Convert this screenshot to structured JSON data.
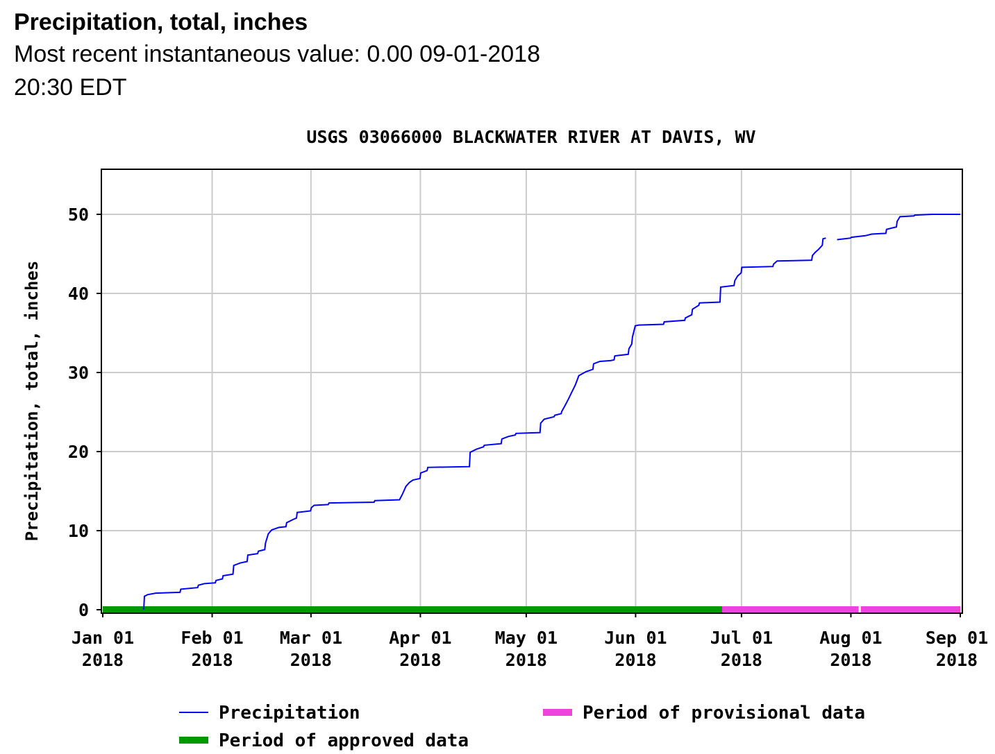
{
  "header": {
    "title": "Precipitation, total, inches",
    "recent_label": "Most recent instantaneous value:",
    "recent_value": "0.00",
    "recent_datetime": "09-01-2018",
    "recent_time": "20:30 EDT"
  },
  "chart_data": {
    "type": "line",
    "title": "USGS 03066000 BLACKWATER RIVER AT DAVIS, WV",
    "xlabel": "",
    "ylabel": "Precipitation, total, inches",
    "ylim": [
      0,
      55
    ],
    "xlim_days": [
      0,
      243
    ],
    "y_ticks": [
      0,
      10,
      20,
      30,
      40,
      50
    ],
    "x_ticks": [
      {
        "day": 0,
        "line1": "Jan 01",
        "line2": "2018"
      },
      {
        "day": 31,
        "line1": "Feb 01",
        "line2": "2018"
      },
      {
        "day": 59,
        "line1": "Mar 01",
        "line2": "2018"
      },
      {
        "day": 90,
        "line1": "Apr 01",
        "line2": "2018"
      },
      {
        "day": 120,
        "line1": "May 01",
        "line2": "2018"
      },
      {
        "day": 151,
        "line1": "Jun 01",
        "line2": "2018"
      },
      {
        "day": 181,
        "line1": "Jul 01",
        "line2": "2018"
      },
      {
        "day": 212,
        "line1": "Aug 01",
        "line2": "2018"
      },
      {
        "day": 243,
        "line1": "Sep 01",
        "line2": "2018"
      }
    ],
    "grid": true,
    "series": [
      {
        "name": "Precipitation",
        "color": "#0000ff",
        "segments": [
          [
            [
              11.6,
              0
            ],
            [
              11.8,
              1.7
            ],
            [
              12.7,
              1.9
            ],
            [
              15.0,
              2.1
            ],
            [
              21.9,
              2.2
            ],
            [
              22.1,
              2.6
            ],
            [
              26.9,
              2.8
            ],
            [
              27.1,
              3.1
            ],
            [
              28.8,
              3.3
            ],
            [
              31.9,
              3.4
            ],
            [
              32.1,
              3.7
            ],
            [
              33.9,
              3.9
            ],
            [
              34.1,
              4.3
            ],
            [
              36.9,
              4.5
            ],
            [
              37.1,
              5.6
            ],
            [
              38.9,
              5.9
            ],
            [
              40.9,
              6.1
            ],
            [
              41.1,
              6.9
            ],
            [
              43.9,
              7.1
            ],
            [
              44.1,
              7.4
            ],
            [
              45.9,
              7.6
            ],
            [
              46.1,
              8.4
            ],
            [
              46.9,
              9.6
            ],
            [
              47.9,
              10.1
            ],
            [
              49.9,
              10.4
            ],
            [
              51.9,
              10.5
            ],
            [
              52.1,
              11.0
            ],
            [
              53.9,
              11.4
            ],
            [
              54.9,
              11.6
            ],
            [
              55.1,
              12.3
            ],
            [
              58.9,
              12.5
            ],
            [
              59.1,
              12.9
            ],
            [
              59.9,
              13.2
            ],
            [
              63.9,
              13.3
            ],
            [
              64.1,
              13.5
            ],
            [
              76.9,
              13.6
            ],
            [
              77.1,
              13.8
            ],
            [
              84.1,
              13.9
            ],
            [
              84.9,
              14.6
            ],
            [
              85.9,
              15.6
            ],
            [
              86.9,
              16.1
            ],
            [
              87.9,
              16.4
            ],
            [
              89.9,
              16.6
            ],
            [
              90.1,
              17.3
            ],
            [
              91.9,
              17.6
            ],
            [
              92.1,
              18.0
            ],
            [
              103.9,
              18.1
            ],
            [
              104.1,
              19.9
            ],
            [
              105.9,
              20.3
            ],
            [
              107.9,
              20.6
            ],
            [
              108.1,
              20.8
            ],
            [
              112.9,
              21.0
            ],
            [
              113.1,
              21.6
            ],
            [
              114.9,
              21.9
            ],
            [
              116.9,
              22.1
            ],
            [
              117.1,
              22.3
            ],
            [
              123.9,
              22.4
            ],
            [
              124.1,
              23.6
            ],
            [
              125.1,
              24.1
            ],
            [
              127.9,
              24.4
            ],
            [
              128.1,
              24.6
            ],
            [
              129.9,
              24.8
            ],
            [
              130.1,
              25.1
            ],
            [
              131.1,
              25.9
            ],
            [
              131.9,
              26.6
            ],
            [
              132.9,
              27.5
            ],
            [
              133.9,
              28.4
            ],
            [
              134.9,
              29.6
            ],
            [
              136.9,
              30.1
            ],
            [
              138.9,
              30.4
            ],
            [
              139.1,
              31.1
            ],
            [
              140.9,
              31.4
            ],
            [
              143.9,
              31.5
            ],
            [
              144.9,
              31.6
            ],
            [
              145.1,
              32.1
            ],
            [
              148.9,
              32.3
            ],
            [
              149.1,
              33.0
            ],
            [
              149.9,
              33.6
            ],
            [
              150.1,
              34.5
            ],
            [
              150.9,
              35.9
            ],
            [
              151.9,
              36.0
            ],
            [
              158.9,
              36.1
            ],
            [
              159.1,
              36.4
            ],
            [
              164.9,
              36.6
            ],
            [
              165.1,
              36.9
            ],
            [
              166.9,
              37.3
            ],
            [
              167.1,
              38.0
            ],
            [
              168.9,
              38.5
            ],
            [
              169.1,
              38.8
            ],
            [
              174.9,
              38.9
            ],
            [
              175.1,
              40.8
            ],
            [
              178.9,
              41.0
            ],
            [
              179.1,
              41.6
            ],
            [
              179.9,
              42.2
            ],
            [
              180.9,
              42.6
            ],
            [
              181.1,
              43.3
            ],
            [
              189.9,
              43.4
            ],
            [
              190.1,
              43.7
            ],
            [
              191.1,
              44.1
            ],
            [
              200.9,
              44.2
            ],
            [
              201.1,
              44.8
            ],
            [
              201.9,
              45.2
            ],
            [
              202.9,
              45.6
            ],
            [
              203.9,
              46.1
            ],
            [
              204.1,
              46.9
            ],
            [
              204.9,
              47.0
            ]
          ],
          [
            [
              208.1,
              46.8
            ],
            [
              211.9,
              47.0
            ],
            [
              212.1,
              47.1
            ],
            [
              216.1,
              47.3
            ],
            [
              217.9,
              47.5
            ],
            [
              221.9,
              47.6
            ],
            [
              222.1,
              48.1
            ],
            [
              223.9,
              48.3
            ],
            [
              224.9,
              48.4
            ],
            [
              225.1,
              49.1
            ],
            [
              225.9,
              49.7
            ],
            [
              229.9,
              49.8
            ],
            [
              230.1,
              49.9
            ],
            [
              235.0,
              50.0
            ],
            [
              243.0,
              50.0
            ]
          ]
        ]
      }
    ],
    "periods": [
      {
        "name": "Period of approved data",
        "color": "#009900",
        "ranges": [
          [
            0,
            175.5
          ]
        ]
      },
      {
        "name": "Period of provisional data",
        "color": "#ee44dd",
        "ranges": [
          [
            175.5,
            214.2
          ],
          [
            214.8,
            243
          ]
        ]
      }
    ],
    "legend": {
      "placement": "bottom",
      "items": [
        {
          "label": "Precipitation",
          "color": "#0000ff",
          "kind": "line"
        },
        {
          "label": "Period of approved data",
          "color": "#009900",
          "kind": "bar"
        },
        {
          "label": "Period of provisional data",
          "color": "#ee44dd",
          "kind": "bar"
        }
      ]
    }
  }
}
